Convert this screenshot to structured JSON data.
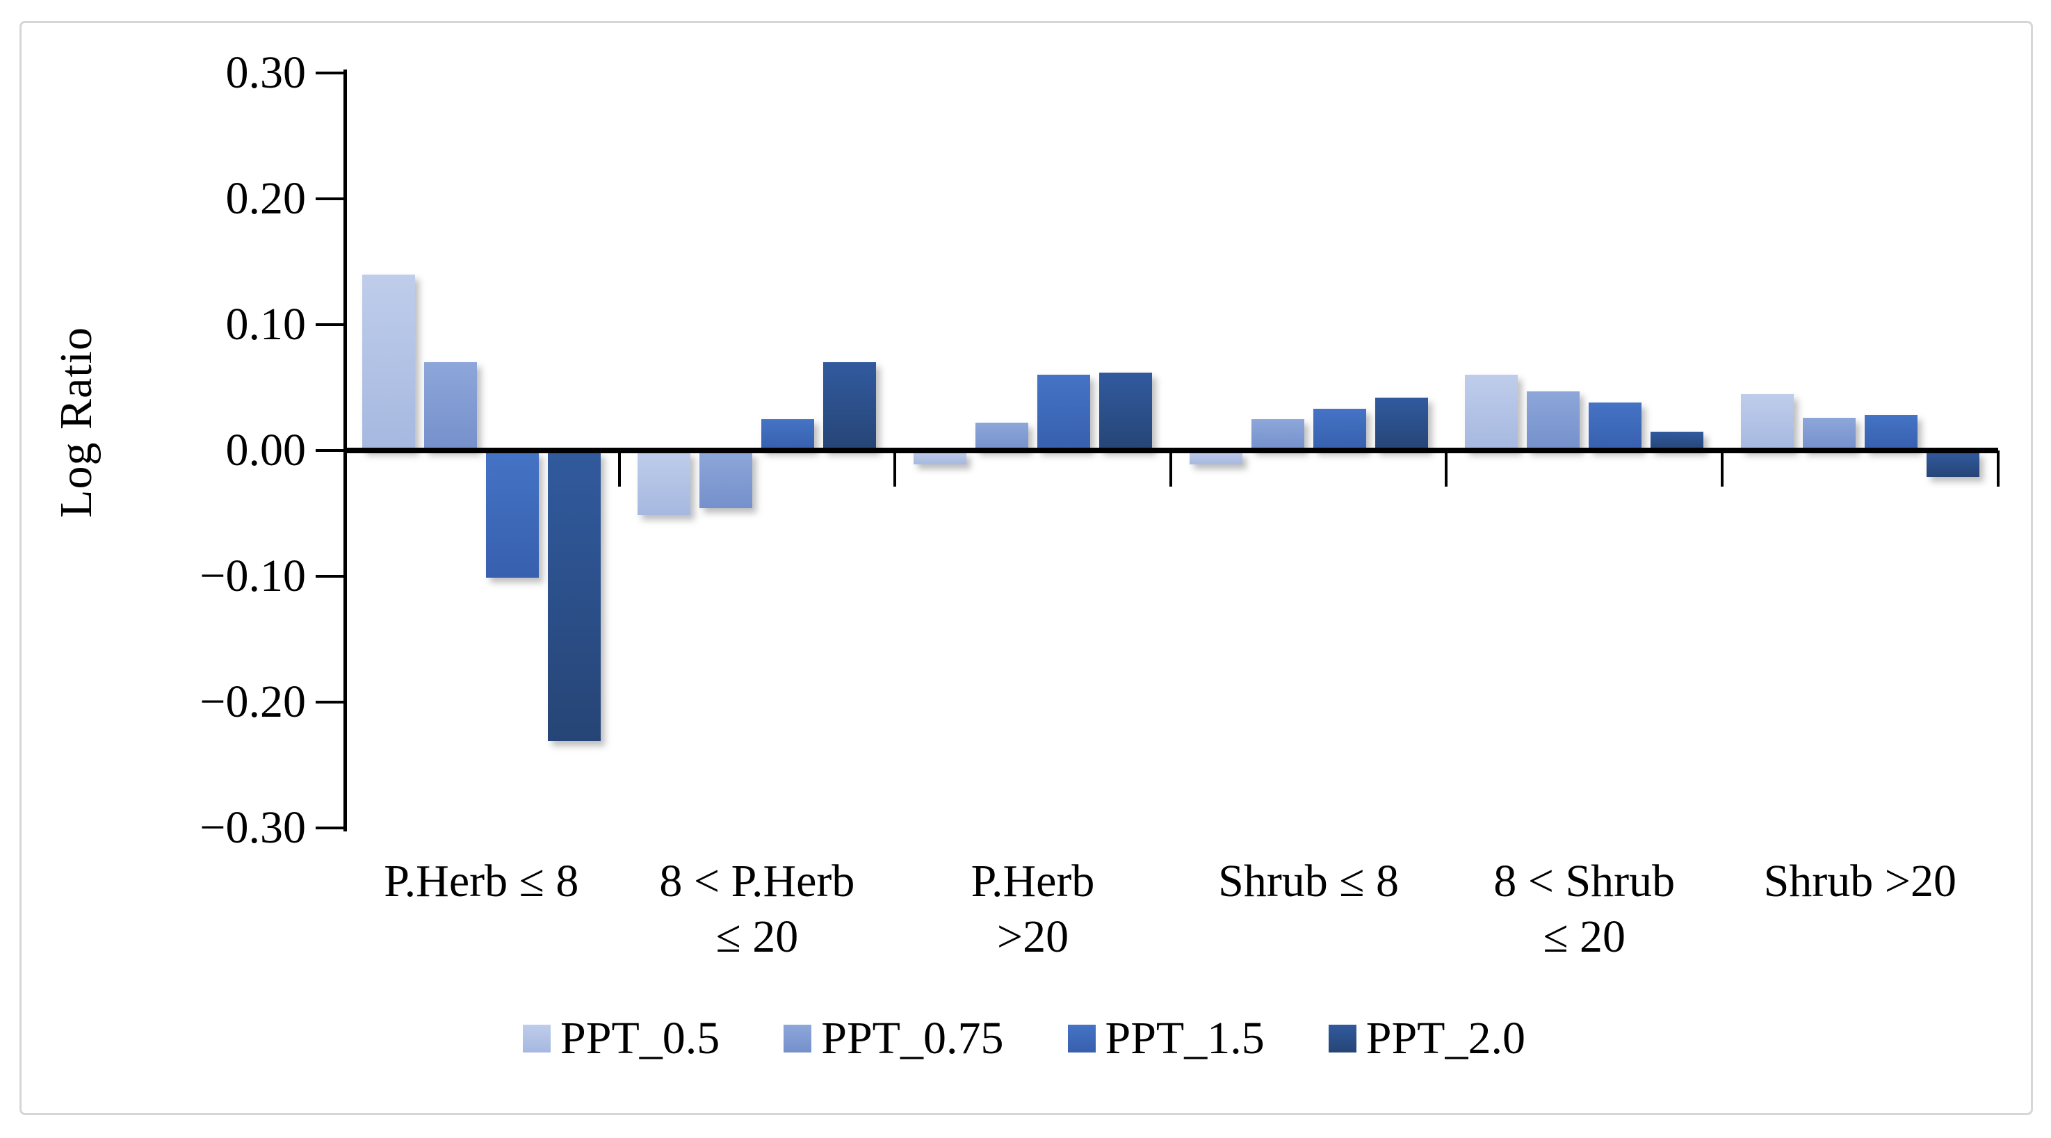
{
  "figure": {
    "ylabel": "Log Ratio"
  },
  "chart_data": {
    "type": "bar",
    "title": "",
    "xlabel": "",
    "ylabel": "Log Ratio",
    "ylim": [
      -0.3,
      0.3
    ],
    "grid": false,
    "legend_position": "bottom",
    "y_ticks": [
      "0.30",
      "0.20",
      "0.10",
      "0.00",
      "−0.10",
      "−0.20",
      "−0.30"
    ],
    "y_tick_values": [
      0.3,
      0.2,
      0.1,
      0.0,
      -0.1,
      -0.2,
      -0.3
    ],
    "categories": [
      "P.Herb ≤ 8",
      "8 < P.Herb ≤ 20",
      "P.Herb >20",
      "Shrub ≤ 8",
      "8 < Shrub ≤ 20",
      "Shrub >20"
    ],
    "category_label_lines": [
      [
        "P.Herb ≤ 8"
      ],
      [
        "8 < P.Herb",
        "≤ 20"
      ],
      [
        "P.Herb",
        ">20"
      ],
      [
        "Shrub ≤ 8"
      ],
      [
        "8 < Shrub",
        "≤ 20"
      ],
      [
        "Shrub >20"
      ]
    ],
    "series": [
      {
        "name": "PPT_0.5",
        "color": "#b4c7e7",
        "color_top": "#bfcdeb",
        "color_bottom": "#a6b8e0",
        "values": [
          0.14,
          -0.05,
          -0.01,
          -0.01,
          0.06,
          0.045
        ]
      },
      {
        "name": "PPT_0.75",
        "color": "#8099d4",
        "color_top": "#8da7da",
        "color_bottom": "#7590cb",
        "values": [
          0.07,
          -0.045,
          0.022,
          0.025,
          0.047,
          0.026
        ]
      },
      {
        "name": "PPT_1.5",
        "color": "#4170c0",
        "color_top": "#4573c5",
        "color_bottom": "#3760ae",
        "values": [
          -0.1,
          0.025,
          0.06,
          0.033,
          0.038,
          0.028
        ]
      },
      {
        "name": "PPT_2.0",
        "color": "#2f5597",
        "color_top": "#315a9e",
        "color_bottom": "#264576",
        "values": [
          -0.23,
          0.07,
          0.062,
          0.042,
          0.015,
          -0.02
        ]
      }
    ]
  }
}
